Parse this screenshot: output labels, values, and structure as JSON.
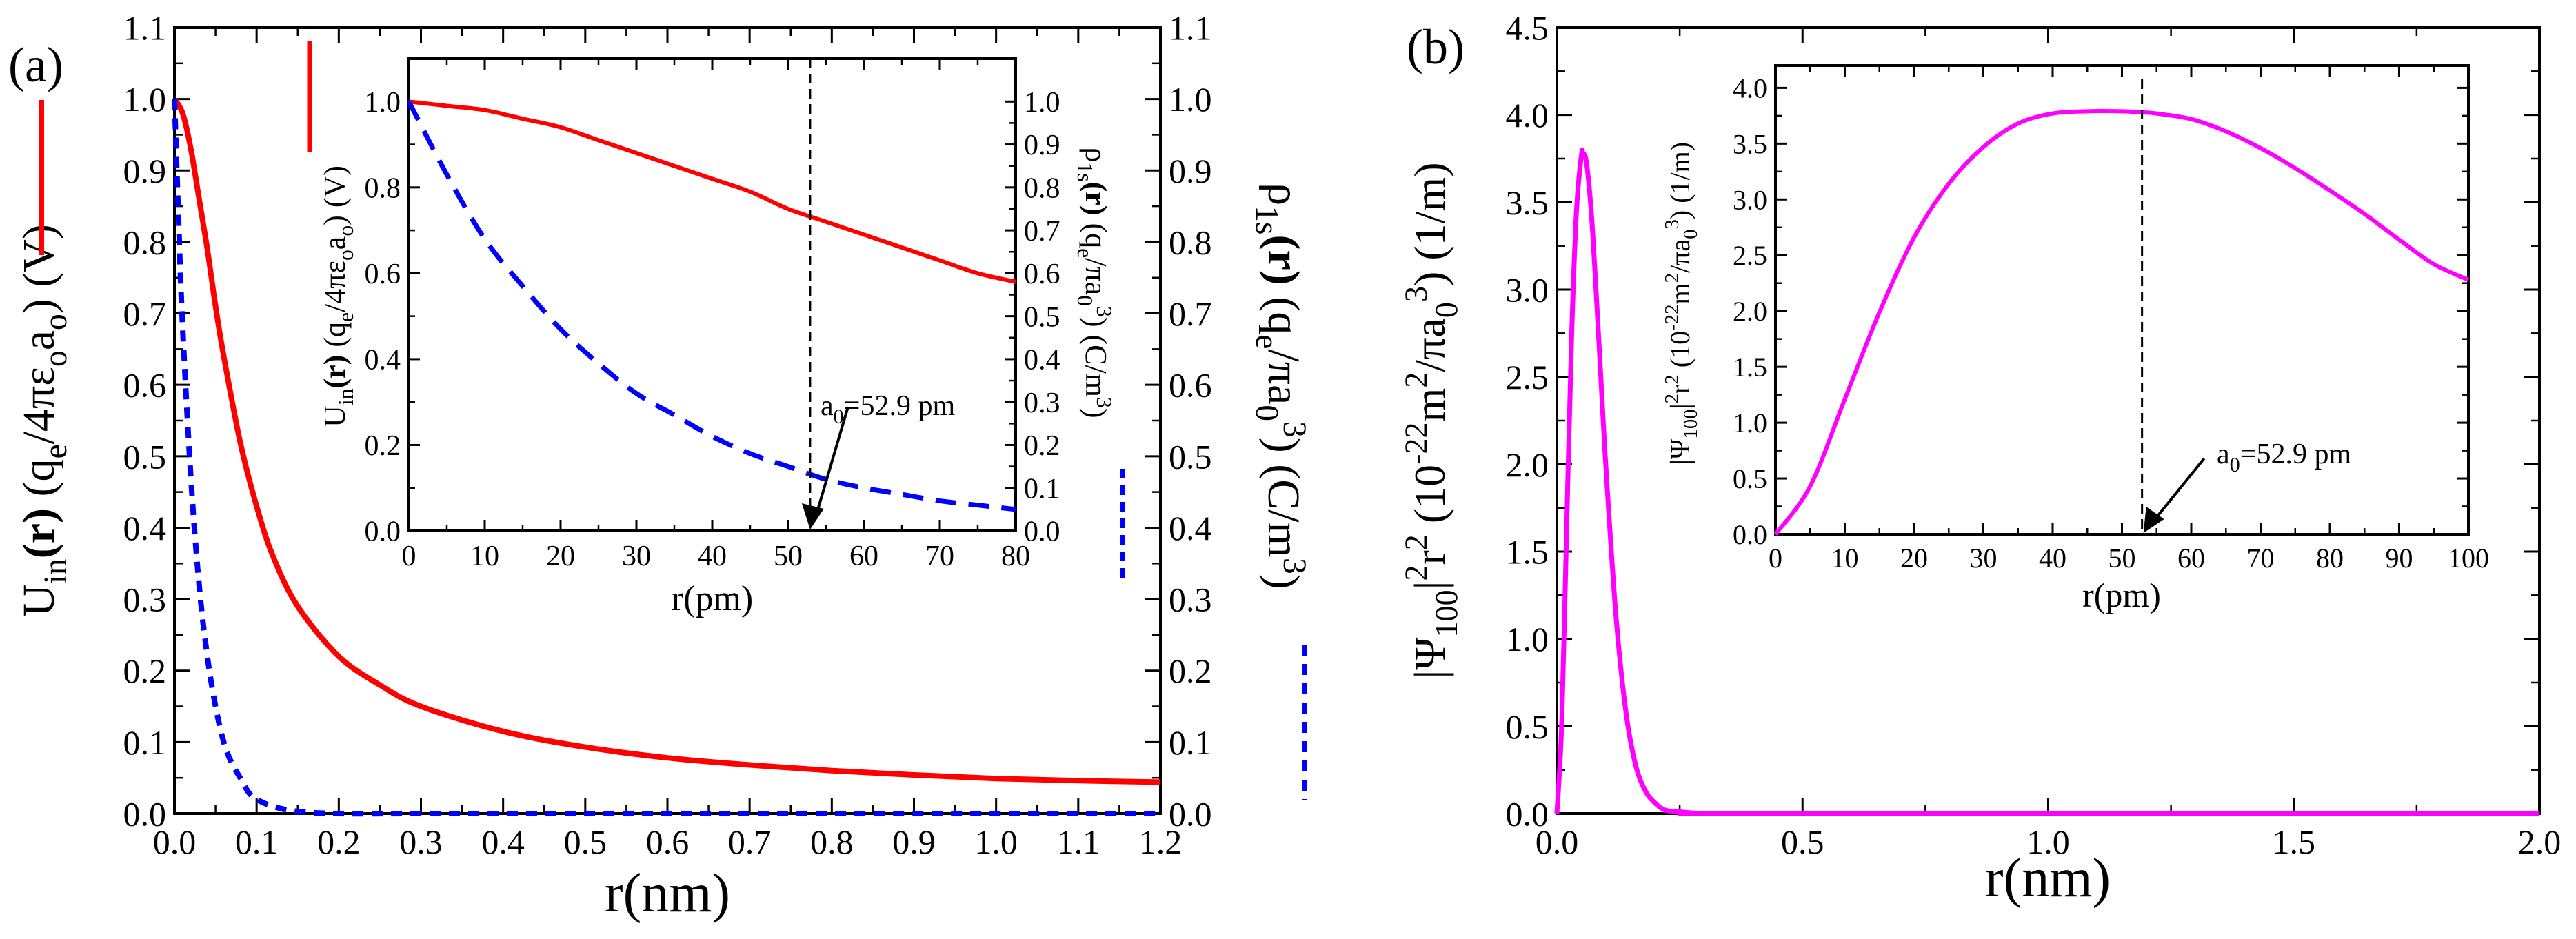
{
  "figure": {
    "panel_a_label": "(a)",
    "panel_b_label": "(b)"
  },
  "colors": {
    "potential": "#ff0000",
    "density": "#0000ff",
    "psi": "#ff00ff",
    "axis": "#000000",
    "marker": "#000000"
  },
  "labels": {
    "a_main_xlabel": "r(nm)",
    "a_main_ylabel_left": {
      "u": "U",
      "u_sub": "in",
      "r": "(r)",
      "rest1": " (q",
      "e": "e",
      "rest2": "/4πε",
      "o1": "o",
      "a": "a",
      "o2": "o",
      "rest3": ") (V)"
    },
    "a_main_ylabel_right": {
      "rho": "ρ",
      "sub": "1s",
      "r": "(r)",
      "rest1": " (q",
      "e": "e",
      "rest2": "/πa",
      "zero": "0",
      "three": "3",
      "rest3": ") (C/m",
      "three2": "3",
      "rest4": ")"
    },
    "a_inset_xlabel": "r(pm)",
    "a_inset_ylabel_left": {
      "u": "U",
      "u_sub": "in",
      "r": "(r)",
      "rest1": " (q",
      "e": "e",
      "rest2": "/4πε",
      "o1": "o",
      "a": "a",
      "o2": "o",
      "rest3": ") (V)"
    },
    "a_inset_ylabel_right": {
      "rho": "ρ",
      "sub": "1s",
      "r": "(r)",
      "rest1": " (q",
      "e": "e",
      "rest2": "/πa",
      "zero": "0",
      "three": "3",
      "rest3": ") (C/m",
      "three2": "3",
      "rest4": ")"
    },
    "a_inset_annotation": {
      "a": "a",
      "sub": "0",
      "rest": "=52.9 pm"
    },
    "b_main_xlabel": "r(nm)",
    "b_main_ylabel": {
      "pre": "|Ψ",
      "sub": "100",
      "mid": "|",
      "sq": "2",
      "r": "r",
      "sq2": "2",
      "rest1": " (10",
      "exp": "-22",
      "rest2": "m",
      "sq3": "2",
      "rest3": "/πa",
      "zero": "0",
      "three": "3",
      "rest4": ") (1/m)"
    },
    "b_inset_xlabel": "r(pm)",
    "b_inset_ylabel": {
      "pre": "|Ψ",
      "sub": "100",
      "mid": "|",
      "sq": "2",
      "r": "r",
      "sq2": "2",
      "rest1": " (10",
      "exp": "-22",
      "rest2": "m",
      "sq3": "2",
      "rest3": "/πa",
      "zero": "0",
      "three": "3",
      "rest4": ") (1/m)"
    },
    "b_inset_annotation": {
      "a": "a",
      "sub": "0",
      "rest": "=52.9 pm"
    }
  },
  "chart_data": [
    {
      "type": "line",
      "panel": "a-main",
      "xlabel": "r(nm)",
      "xlim": [
        0,
        1.2
      ],
      "ylim_left": [
        0,
        1.1
      ],
      "ylim_right": [
        0,
        1.1
      ],
      "xticks": [
        "0.0",
        "0.1",
        "0.2",
        "0.3",
        "0.4",
        "0.5",
        "0.6",
        "0.7",
        "0.8",
        "0.9",
        "1.0",
        "1.1",
        "1.2"
      ],
      "yticks_left": [
        "0.0",
        "0.1",
        "0.2",
        "0.3",
        "0.4",
        "0.5",
        "0.6",
        "0.7",
        "0.8",
        "0.9",
        "1.0",
        "1.1"
      ],
      "yticks_right": [
        "0.0",
        "0.1",
        "0.2",
        "0.3",
        "0.4",
        "0.5",
        "0.6",
        "0.7",
        "0.8",
        "0.9",
        "1.0",
        "1.1"
      ],
      "series": [
        {
          "axis": "left",
          "style": "solid",
          "color": "#ff0000",
          "x": [
            0,
            0.01,
            0.02,
            0.03,
            0.04,
            0.05,
            0.06,
            0.08,
            0.1,
            0.12,
            0.15,
            0.2,
            0.25,
            0.3,
            0.4,
            0.5,
            0.6,
            0.7,
            0.8,
            0.9,
            1.0,
            1.1,
            1.2
          ],
          "y": [
            1.0,
            0.98,
            0.93,
            0.86,
            0.79,
            0.71,
            0.64,
            0.52,
            0.43,
            0.36,
            0.29,
            0.22,
            0.18,
            0.15,
            0.115,
            0.093,
            0.078,
            0.068,
            0.06,
            0.054,
            0.049,
            0.046,
            0.044
          ]
        },
        {
          "axis": "right",
          "style": "dashed",
          "color": "#0000ff",
          "x": [
            0,
            0.005,
            0.01,
            0.02,
            0.03,
            0.04,
            0.05,
            0.06,
            0.07,
            0.08,
            0.09,
            0.1,
            0.12,
            0.15,
            0.2,
            0.3,
            0.5,
            1.2
          ],
          "y": [
            1.0,
            0.83,
            0.68,
            0.47,
            0.32,
            0.22,
            0.15,
            0.1,
            0.07,
            0.05,
            0.03,
            0.02,
            0.01,
            0.003,
            0.0,
            0.0,
            0.0,
            0.0
          ]
        }
      ]
    },
    {
      "type": "line",
      "panel": "a-inset",
      "xlabel": "r(pm)",
      "xlim": [
        0,
        80
      ],
      "ylim_left": [
        0,
        1.1
      ],
      "ylim_right": [
        0,
        1.1
      ],
      "xticks": [
        "0",
        "10",
        "20",
        "30",
        "40",
        "50",
        "60",
        "70",
        "80"
      ],
      "yticks_left": [
        "0.0",
        "0.2",
        "0.4",
        "0.6",
        "0.8",
        "1.0"
      ],
      "yticks_right": [
        "0.0",
        "0.1",
        "0.2",
        "0.3",
        "0.4",
        "0.5",
        "0.6",
        "0.7",
        "0.8",
        "0.9",
        "1.0"
      ],
      "marker_x": 52.9,
      "series": [
        {
          "axis": "left",
          "style": "solid",
          "color": "#ff0000",
          "x": [
            0,
            5,
            10,
            15,
            20,
            25,
            30,
            35,
            40,
            45,
            50,
            55,
            60,
            65,
            70,
            75,
            80
          ],
          "y": [
            1.0,
            0.99,
            0.98,
            0.96,
            0.94,
            0.91,
            0.88,
            0.85,
            0.82,
            0.79,
            0.75,
            0.72,
            0.69,
            0.66,
            0.63,
            0.6,
            0.58
          ]
        },
        {
          "axis": "right",
          "style": "dashed",
          "color": "#0000ff",
          "x": [
            0,
            5,
            10,
            15,
            20,
            25,
            30,
            35,
            40,
            45,
            50,
            55,
            60,
            65,
            70,
            75,
            80
          ],
          "y": [
            1.0,
            0.83,
            0.68,
            0.57,
            0.47,
            0.39,
            0.32,
            0.27,
            0.22,
            0.18,
            0.15,
            0.12,
            0.1,
            0.085,
            0.07,
            0.06,
            0.05
          ]
        }
      ]
    },
    {
      "type": "line",
      "panel": "b-main",
      "xlabel": "r(nm)",
      "xlim": [
        0,
        2.0
      ],
      "ylim": [
        0,
        4.5
      ],
      "xticks": [
        "0.0",
        "0.5",
        "1.0",
        "1.5",
        "2.0"
      ],
      "yticks": [
        "0.0",
        "0.5",
        "1.0",
        "1.5",
        "2.0",
        "2.5",
        "3.0",
        "3.5",
        "4.0",
        "4.5"
      ],
      "series": [
        {
          "style": "solid",
          "color": "#ff00ff",
          "x": [
            0,
            0.01,
            0.02,
            0.03,
            0.04,
            0.05,
            0.0529,
            0.06,
            0.07,
            0.08,
            0.09,
            0.1,
            0.12,
            0.14,
            0.16,
            0.18,
            0.2,
            0.22,
            0.25,
            0.3,
            0.4,
            2.0
          ],
          "y": [
            0,
            0.53,
            1.66,
            2.74,
            3.46,
            3.77,
            3.78,
            3.73,
            3.44,
            2.98,
            2.47,
            1.97,
            1.14,
            0.59,
            0.28,
            0.13,
            0.06,
            0.02,
            0.01,
            0.0,
            0.0,
            0.0
          ]
        }
      ]
    },
    {
      "type": "line",
      "panel": "b-inset",
      "xlabel": "r(pm)",
      "xlim": [
        0,
        100
      ],
      "ylim": [
        0,
        4.2
      ],
      "xticks": [
        "0",
        "10",
        "20",
        "30",
        "40",
        "50",
        "60",
        "70",
        "80",
        "90",
        "100"
      ],
      "yticks": [
        "0.0",
        "0.5",
        "1.0",
        "1.5",
        "2.0",
        "2.5",
        "3.0",
        "3.5",
        "4.0"
      ],
      "marker_x": 52.9,
      "series": [
        {
          "style": "solid",
          "color": "#ff00ff",
          "x": [
            0,
            5,
            10,
            15,
            20,
            25,
            30,
            35,
            40,
            45,
            50,
            52.9,
            55,
            60,
            65,
            70,
            75,
            80,
            85,
            90,
            95,
            100
          ],
          "y": [
            0,
            0.43,
            1.21,
            1.99,
            2.66,
            3.14,
            3.47,
            3.68,
            3.77,
            3.79,
            3.79,
            3.78,
            3.77,
            3.72,
            3.61,
            3.46,
            3.28,
            3.08,
            2.87,
            2.64,
            2.42,
            2.28
          ]
        }
      ]
    }
  ]
}
